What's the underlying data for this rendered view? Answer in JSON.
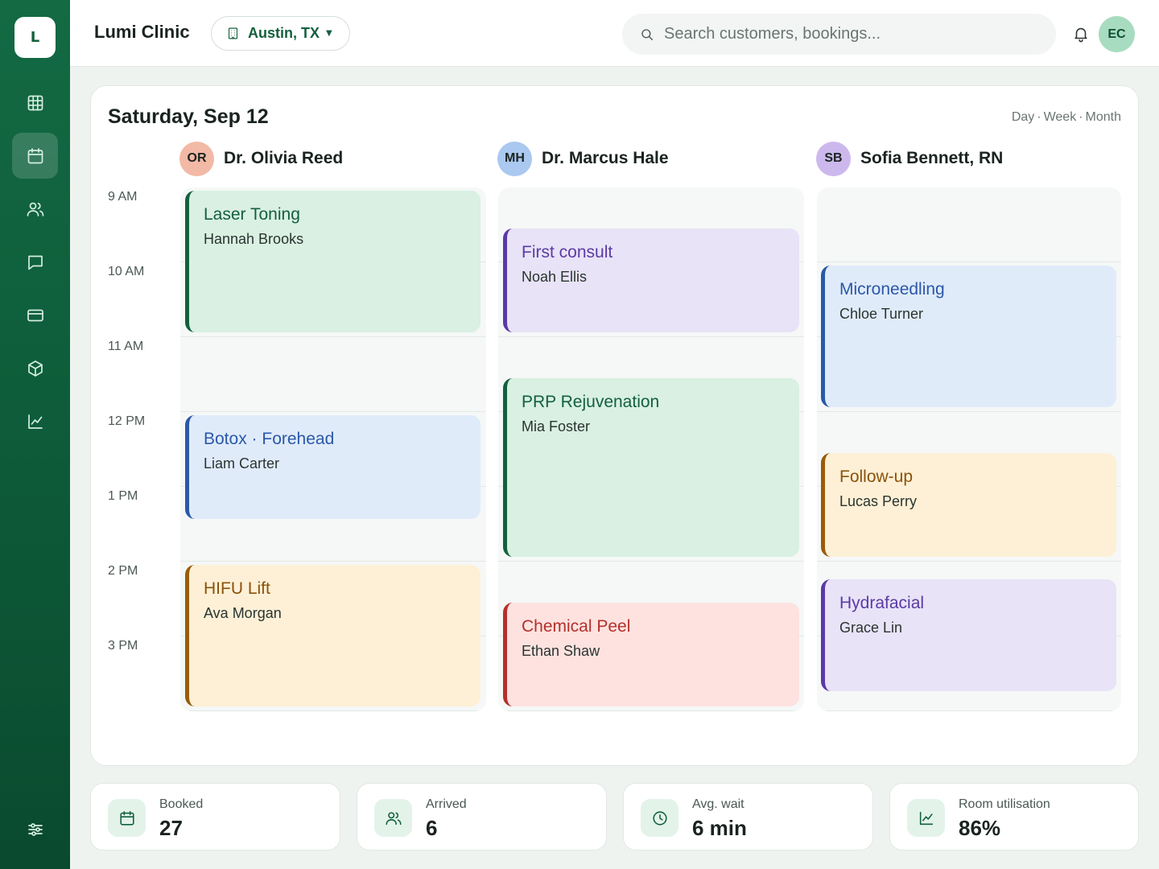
{
  "app": {
    "logo_letter": "L",
    "clinic_name": "Lumi Clinic",
    "location": "Austin, TX"
  },
  "search": {
    "placeholder": "Search customers, bookings..."
  },
  "user": {
    "initials": "EC"
  },
  "sidebar": {
    "items": [
      {
        "icon": "dashboard-grid-icon",
        "active": false
      },
      {
        "icon": "calendar-icon",
        "active": true
      },
      {
        "icon": "users-icon",
        "active": false
      },
      {
        "icon": "messages-icon",
        "active": false
      },
      {
        "icon": "payments-card-icon",
        "active": false
      },
      {
        "icon": "inventory-box-icon",
        "active": false
      },
      {
        "icon": "analytics-chart-icon",
        "active": false
      },
      {
        "icon": "settings-sliders-icon",
        "active": false
      }
    ]
  },
  "schedule": {
    "date": "Saturday, Sep 12",
    "views": [
      "Day",
      "Week",
      "Month"
    ],
    "view_separator": "·",
    "times": [
      "9 AM",
      "10 AM",
      "11 AM",
      "12 PM",
      "1 PM",
      "2 PM",
      "3 PM"
    ],
    "providers": [
      {
        "initials": "OR",
        "name": "Dr. Olivia Reed",
        "avatar_color": "#f2b9a6",
        "appointments": [
          {
            "service": "Laser Toning",
            "customer": "Hannah Brooks",
            "start": "9:00",
            "end": "11:00",
            "color": "green"
          },
          {
            "service": "Botox · Forehead",
            "customer": "Liam Carter",
            "start": "12:00",
            "end": "1:30",
            "color": "blue"
          },
          {
            "service": "HIFU Lift",
            "customer": "Ava Morgan",
            "start": "2:00",
            "end": "4:00",
            "color": "amber"
          }
        ]
      },
      {
        "initials": "MH",
        "name": "Dr. Marcus Hale",
        "avatar_color": "#aac8f0",
        "appointments": [
          {
            "service": "First consult",
            "customer": "Noah Ellis",
            "start": "9:30",
            "end": "11:00",
            "color": "lavender"
          },
          {
            "service": "PRP Rejuvenation",
            "customer": "Mia Foster",
            "start": "11:30",
            "end": "2:00",
            "color": "green"
          },
          {
            "service": "Chemical Peel",
            "customer": "Ethan Shaw",
            "start": "2:30",
            "end": "4:00",
            "color": "pink"
          }
        ]
      },
      {
        "initials": "SB",
        "name": "Sofia Bennett, RN",
        "avatar_color": "#cdb8ee",
        "appointments": [
          {
            "service": "Microneedling",
            "customer": "Chloe Turner",
            "start": "10:00",
            "end": "12:00",
            "color": "blue"
          },
          {
            "service": "Follow-up",
            "customer": "Lucas Perry",
            "start": "12:30",
            "end": "2:00",
            "color": "amber"
          },
          {
            "service": "Hydrafacial",
            "customer": "Grace Lin",
            "start": "2:15",
            "end": "3:45",
            "color": "lavender"
          }
        ]
      }
    ]
  },
  "stats": [
    {
      "icon": "calendar-icon",
      "label": "Booked",
      "value": "27"
    },
    {
      "icon": "users-icon",
      "label": "Arrived",
      "value": "6"
    },
    {
      "icon": "clock-icon",
      "label": "Avg. wait",
      "value": "6 min"
    },
    {
      "icon": "trend-chart-icon",
      "label": "Room utilisation",
      "value": "86%"
    }
  ],
  "colors": {
    "brand": "#13603d",
    "sidebar": "#0d5a38",
    "green_bg": "#d9f0e2",
    "blue_bg": "#e0ebfa",
    "lavender_bg": "#e8e3f7",
    "amber_bg": "#fdf0d6",
    "pink_bg": "#fde2e0"
  }
}
